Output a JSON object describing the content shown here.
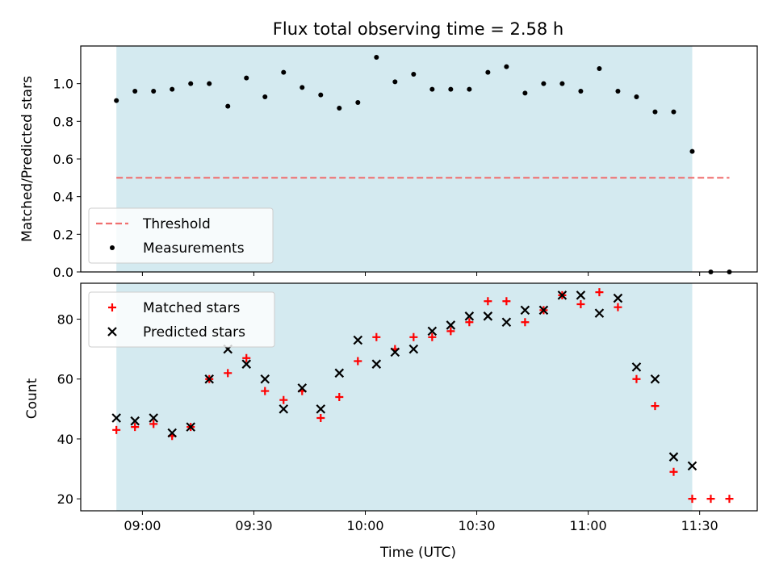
{
  "chart_data": [
    {
      "type": "scatter",
      "title": "Flux total observing time = 2.58 h",
      "ylabel": "Matched/Predicted stars",
      "xlabel": "",
      "ylim": [
        0,
        1.2
      ],
      "yticks": [
        "0.0",
        "0.2",
        "0.4",
        "0.6",
        "0.8",
        "1.0"
      ],
      "xticks": [
        "09:00",
        "09:30",
        "10:00",
        "10:30",
        "11:00",
        "11:30"
      ],
      "observing_window": [
        "08:53",
        "11:28"
      ],
      "legend_position": "lower-left",
      "threshold": {
        "name": "Threshold",
        "value": 0.5,
        "x_range": [
          "08:53",
          "11:38"
        ],
        "color": "#f07070",
        "style": "dashed"
      },
      "series": [
        {
          "name": "Measurements",
          "color": "#000000",
          "marker": "dot",
          "x": [
            "08:53",
            "08:58",
            "09:03",
            "09:08",
            "09:13",
            "09:18",
            "09:23",
            "09:28",
            "09:33",
            "09:38",
            "09:43",
            "09:48",
            "09:53",
            "09:58",
            "10:03",
            "10:08",
            "10:13",
            "10:18",
            "10:23",
            "10:28",
            "10:33",
            "10:38",
            "10:43",
            "10:48",
            "10:53",
            "10:58",
            "11:03",
            "11:08",
            "11:13",
            "11:18",
            "11:23",
            "11:28",
            "11:33",
            "11:38"
          ],
          "y": [
            0.91,
            0.96,
            0.96,
            0.97,
            1.0,
            1.0,
            0.88,
            1.03,
            0.93,
            1.06,
            0.98,
            0.94,
            0.87,
            0.9,
            1.14,
            1.01,
            1.05,
            0.97,
            0.97,
            0.97,
            1.06,
            1.09,
            0.95,
            1.0,
            1.0,
            0.96,
            1.08,
            0.96,
            0.93,
            0.85,
            0.85,
            0.64,
            0.0,
            0.0
          ]
        }
      ]
    },
    {
      "type": "scatter",
      "title": "",
      "ylabel": "Count",
      "xlabel": "Time (UTC)",
      "ylim": [
        16,
        92
      ],
      "yticks": [
        "20",
        "40",
        "60",
        "80"
      ],
      "xticks": [
        "09:00",
        "09:30",
        "10:00",
        "10:30",
        "11:00",
        "11:30"
      ],
      "observing_window": [
        "08:53",
        "11:28"
      ],
      "legend_position": "top-left",
      "series": [
        {
          "name": "Matched stars",
          "color": "#ff0000",
          "marker": "plus",
          "x": [
            "08:53",
            "08:58",
            "09:03",
            "09:08",
            "09:13",
            "09:18",
            "09:23",
            "09:28",
            "09:33",
            "09:38",
            "09:43",
            "09:48",
            "09:53",
            "09:58",
            "10:03",
            "10:08",
            "10:13",
            "10:18",
            "10:23",
            "10:28",
            "10:33",
            "10:38",
            "10:43",
            "10:48",
            "10:53",
            "10:58",
            "11:03",
            "11:08",
            "11:13",
            "11:18",
            "11:23",
            "11:28",
            "11:33",
            "11:38"
          ],
          "y": [
            43,
            44,
            45,
            41,
            44,
            60,
            62,
            67,
            56,
            53,
            56,
            47,
            54,
            66,
            74,
            70,
            74,
            74,
            76,
            79,
            86,
            86,
            79,
            83,
            88,
            85,
            89,
            84,
            60,
            51,
            29,
            20,
            20,
            20
          ]
        },
        {
          "name": "Predicted stars",
          "color": "#000000",
          "marker": "x",
          "x": [
            "08:53",
            "08:58",
            "09:03",
            "09:08",
            "09:13",
            "09:18",
            "09:23",
            "09:28",
            "09:33",
            "09:38",
            "09:43",
            "09:48",
            "09:53",
            "09:58",
            "10:03",
            "10:08",
            "10:13",
            "10:18",
            "10:23",
            "10:28",
            "10:33",
            "10:38",
            "10:43",
            "10:48",
            "10:53",
            "10:58",
            "11:03",
            "11:08",
            "11:13",
            "11:18",
            "11:23",
            "11:28"
          ],
          "y": [
            47,
            46,
            47,
            42,
            44,
            60,
            70,
            65,
            60,
            50,
            57,
            50,
            62,
            73,
            65,
            69,
            70,
            76,
            78,
            81,
            81,
            79,
            83,
            83,
            88,
            88,
            82,
            87,
            64,
            60,
            34,
            31
          ]
        }
      ]
    }
  ],
  "colors": {
    "window": "#d4eaf0",
    "axes": "#000000"
  }
}
